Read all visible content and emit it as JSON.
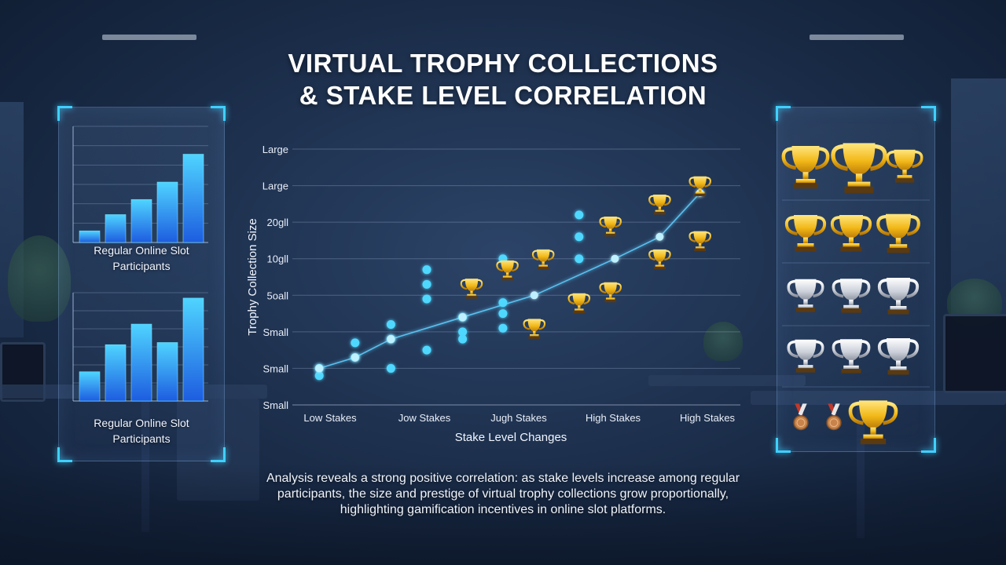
{
  "title": {
    "line1": "VIRTUAL TROPHY COLLECTIONS",
    "line2": "& STAKE LEVEL CORRELATION"
  },
  "left_panel": {
    "top_label": "Regular Online Slot Participants",
    "bottom_label": "Regular Online Slot Participants",
    "top_bars": [
      0.1,
      0.24,
      0.37,
      0.52,
      0.76
    ],
    "bottom_bars": [
      0.27,
      0.52,
      0.71,
      0.54,
      0.95
    ]
  },
  "right_panel": {
    "trophy_rows": [
      [
        "gold-trophy-icon",
        "gold-trophy-icon",
        "gold-trophy-icon"
      ],
      [
        "gold-trophy-icon",
        "gold-trophy-icon",
        "gold-trophy-icon"
      ],
      [
        "silver-trophy-icon",
        "silver-trophy-icon",
        "silver-trophy-icon"
      ],
      [
        "silver-trophy-icon",
        "silver-trophy-icon",
        "silver-trophy-icon"
      ],
      [
        "bronze-medal-icon",
        "bronze-medal-icon",
        "gold-trophy-icon"
      ]
    ]
  },
  "chart_data": {
    "type": "scatter",
    "xlabel": "Stake Level Changes",
    "ylabel": "Trophy Collection Size",
    "x_ticks": [
      "Low Stakes",
      "Jow Stakes",
      "Jugh Stakes",
      "High Stakes",
      "High Stakes"
    ],
    "y_ticks": [
      "Small",
      "Small",
      "Small",
      "5oall",
      "10gll",
      "20gll",
      "Large",
      "Large"
    ],
    "xlim": [
      0,
      5
    ],
    "ylim": [
      0,
      7
    ],
    "grid": true,
    "colors": {
      "point": "#4fd8ff",
      "trophy": "#f2b818",
      "trend": "#5fcfff"
    },
    "series": [
      {
        "marker": "dot",
        "points": [
          [
            0.3,
            1.0
          ],
          [
            0.3,
            0.8
          ],
          [
            0.7,
            1.3
          ],
          [
            0.7,
            1.7
          ],
          [
            1.1,
            1.0
          ],
          [
            1.1,
            1.8
          ],
          [
            1.1,
            2.2
          ],
          [
            1.5,
            1.5
          ],
          [
            1.5,
            2.9
          ],
          [
            1.5,
            3.3
          ],
          [
            1.5,
            3.7
          ],
          [
            1.9,
            2.0
          ],
          [
            1.9,
            1.8
          ],
          [
            1.9,
            2.4
          ],
          [
            2.35,
            2.1
          ],
          [
            2.35,
            2.5
          ],
          [
            2.35,
            2.8
          ],
          [
            2.35,
            4.0
          ],
          [
            3.2,
            4.0
          ],
          [
            3.2,
            4.6
          ],
          [
            3.2,
            5.2
          ]
        ]
      },
      {
        "marker": "trophy",
        "points": [
          [
            2.0,
            3.2
          ],
          [
            2.4,
            3.7
          ],
          [
            2.8,
            4.0
          ],
          [
            2.7,
            2.1
          ],
          [
            3.2,
            2.8
          ],
          [
            3.55,
            3.1
          ],
          [
            3.55,
            4.9
          ],
          [
            4.1,
            4.0
          ],
          [
            4.1,
            5.5
          ],
          [
            4.55,
            4.5
          ],
          [
            4.55,
            6.0
          ]
        ]
      }
    ],
    "trend": [
      [
        0.3,
        1.0
      ],
      [
        0.7,
        1.3
      ],
      [
        1.1,
        1.8
      ],
      [
        1.9,
        2.4
      ],
      [
        2.7,
        3.0
      ],
      [
        3.6,
        4.0
      ],
      [
        4.1,
        4.6
      ],
      [
        4.55,
        5.8
      ]
    ]
  },
  "description": "Analysis reveals a strong positive correlation: as stake levels increase among regular participants, the size and prestige of virtual trophy collections grow proportionally, highlighting gamification incentives in online slot platforms."
}
